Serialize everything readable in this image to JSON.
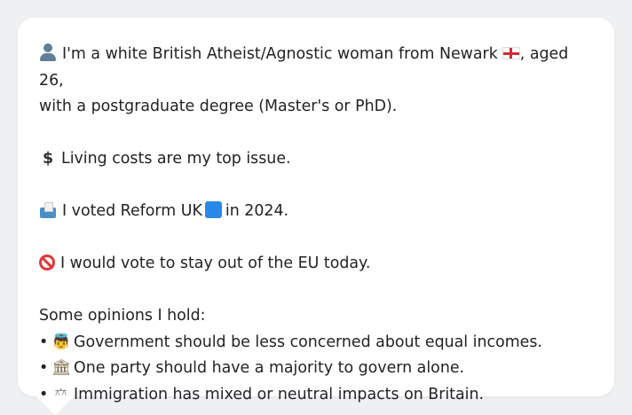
{
  "card": {
    "intro_line_1": "I'm a white British Atheist/Agnostic woman from Newark",
    "intro_line_1b": ", aged 26,",
    "intro_line_2": "with a postgraduate degree (Master's or PhD).",
    "issue": "Living costs are my top issue.",
    "vote_pre": "I voted Reform UK",
    "vote_post": "in 2024.",
    "eu": "I would vote to stay out of the EU today.",
    "opinions_heading": "Some opinions I hold:",
    "opinions": [
      {
        "icon": "cupid-icon",
        "glyph": "👼",
        "text": "Government should be less concerned about equal incomes."
      },
      {
        "icon": "classical-building-icon",
        "glyph": "🏛",
        "text": "One party should have a majority to govern alone."
      },
      {
        "icon": "scales-icon",
        "glyph": "⚖",
        "text": "Immigration has mixed or neutral impacts on Britain."
      }
    ],
    "bullet": "•",
    "dollar": "$"
  },
  "colors": {
    "background": "#eef0f2",
    "card": "#ffffff",
    "text": "#222326",
    "reform_blue": "#2a87e8",
    "prohibited_red": "#dc3a3a"
  }
}
